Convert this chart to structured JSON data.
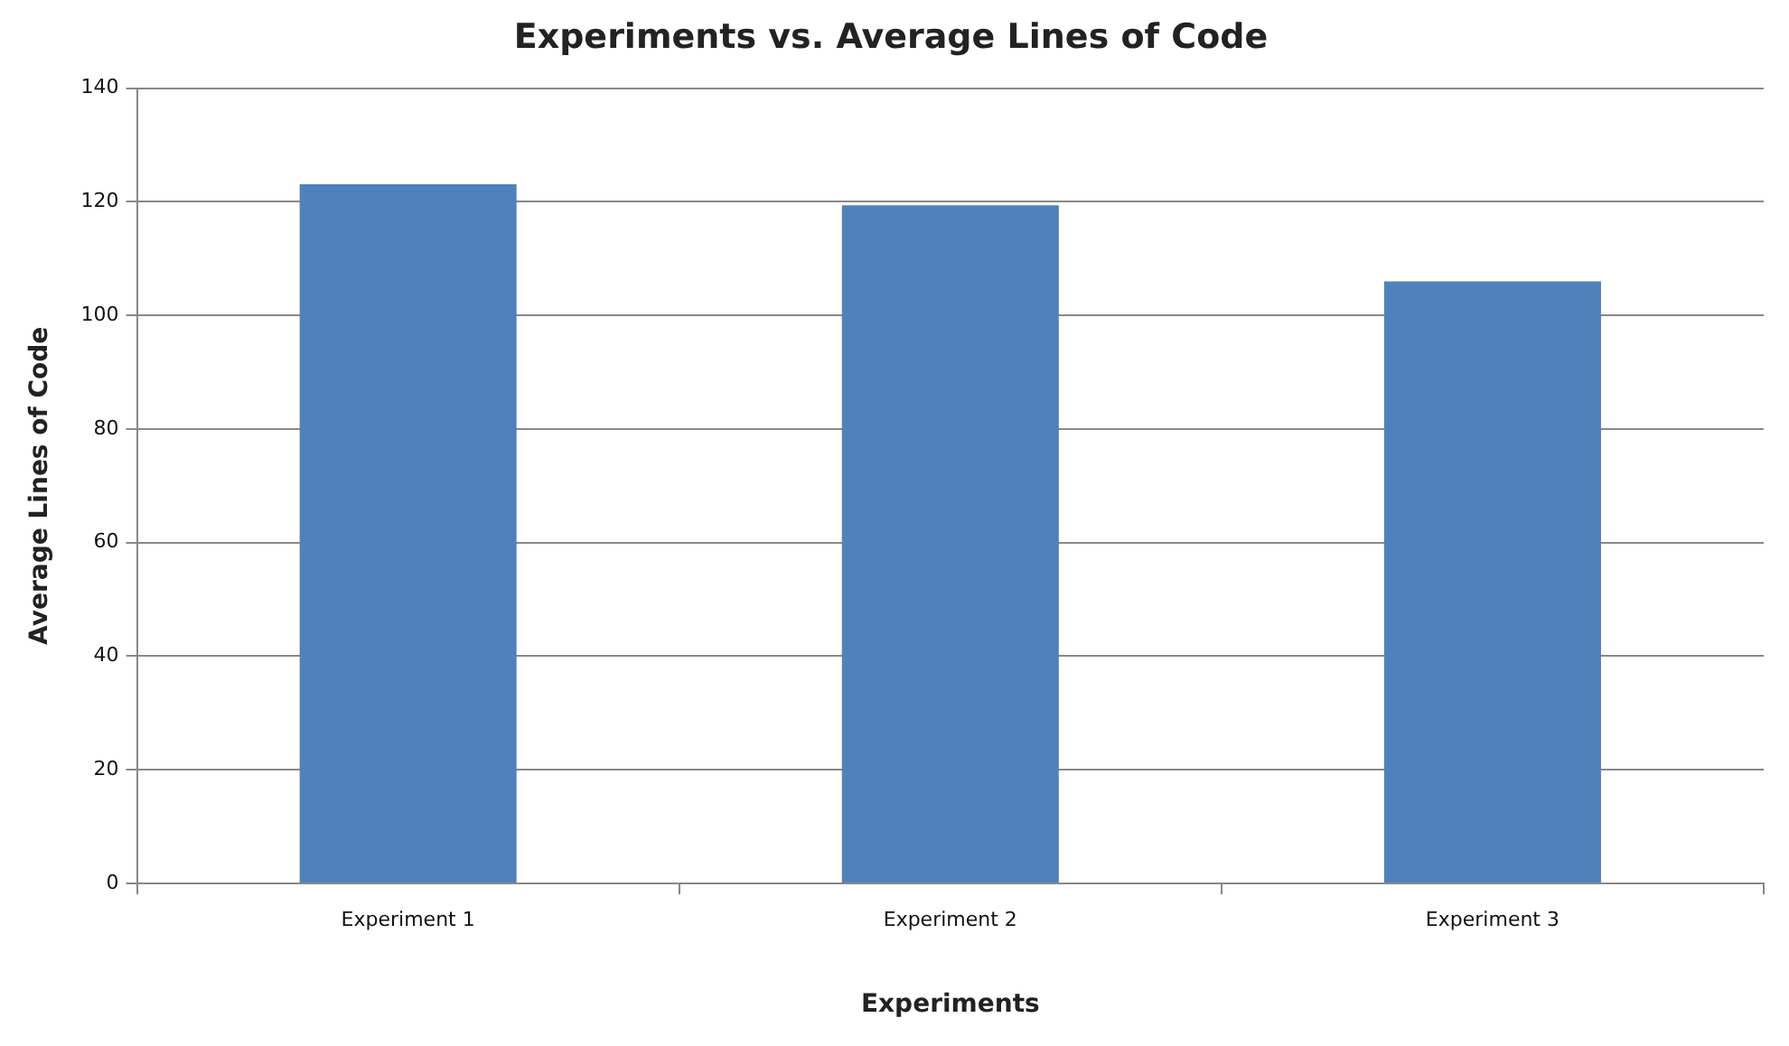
{
  "chart_data": {
    "type": "bar",
    "title": "Experiments vs. Average Lines of Code",
    "xlabel": "Experiments",
    "ylabel": "Average Lines of Code",
    "categories": [
      "Experiment 1",
      "Experiment 2",
      "Experiment 3"
    ],
    "values": [
      123.1,
      119.4,
      106.0
    ],
    "color": "#4f81bd",
    "ylim": [
      0,
      140
    ],
    "yticks": [
      0,
      20,
      40,
      60,
      80,
      100,
      120,
      140
    ],
    "grid": "y",
    "legend": false
  }
}
